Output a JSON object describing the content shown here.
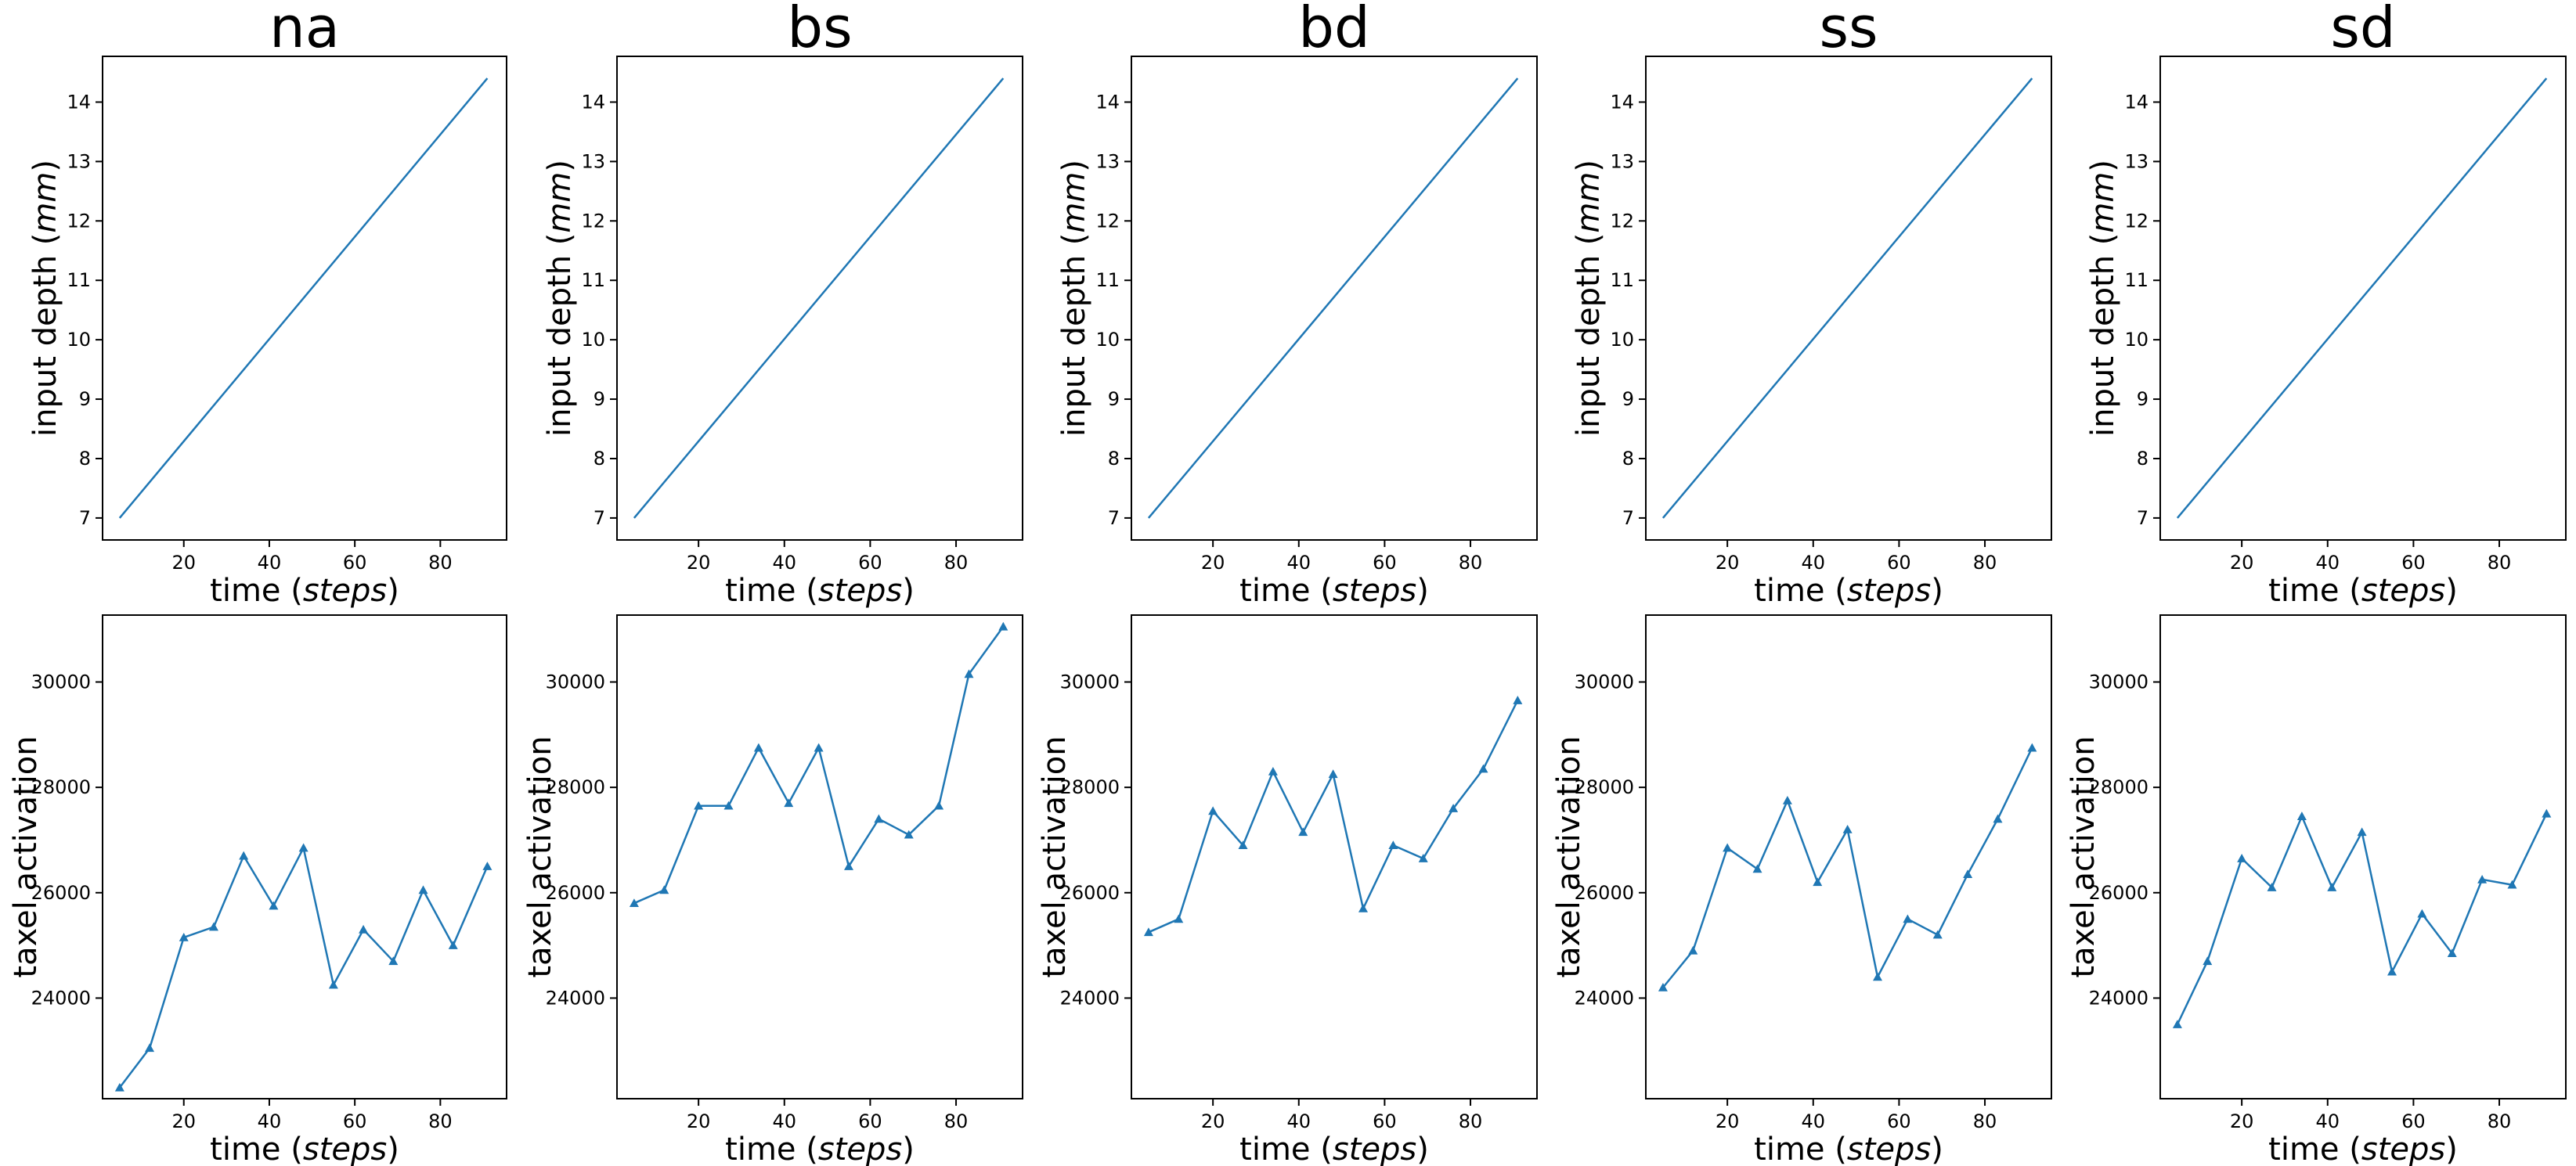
{
  "figure": {
    "panel_titles": [
      "na",
      "bs",
      "bd",
      "ss",
      "sd"
    ],
    "line_color": "#1f77b4",
    "frame_color": "#000000"
  },
  "chart_data": [
    {
      "panel": "na-depth",
      "type": "line",
      "title": "na",
      "xlabel": "time",
      "xlabel_unit": "steps",
      "ylabel": "input depth",
      "ylabel_unit": "mm",
      "x": [
        5,
        91
      ],
      "y": [
        7.0,
        14.4
      ],
      "xlim": [
        1,
        95.5
      ],
      "ylim": [
        6.63,
        14.77
      ],
      "xticks": [
        20,
        40,
        60,
        80
      ],
      "yticks": [
        7,
        8,
        9,
        10,
        11,
        12,
        13,
        14
      ],
      "marker": "none",
      "grid": false
    },
    {
      "panel": "bs-depth",
      "type": "line",
      "title": "bs",
      "xlabel": "time",
      "xlabel_unit": "steps",
      "ylabel": "input depth",
      "ylabel_unit": "mm",
      "x": [
        5,
        91
      ],
      "y": [
        7.0,
        14.4
      ],
      "xlim": [
        1,
        95.5
      ],
      "ylim": [
        6.63,
        14.77
      ],
      "xticks": [
        20,
        40,
        60,
        80
      ],
      "yticks": [
        7,
        8,
        9,
        10,
        11,
        12,
        13,
        14
      ],
      "marker": "none",
      "grid": false
    },
    {
      "panel": "bd-depth",
      "type": "line",
      "title": "bd",
      "xlabel": "time",
      "xlabel_unit": "steps",
      "ylabel": "input depth",
      "ylabel_unit": "mm",
      "x": [
        5,
        91
      ],
      "y": [
        7.0,
        14.4
      ],
      "xlim": [
        1,
        95.5
      ],
      "ylim": [
        6.63,
        14.77
      ],
      "xticks": [
        20,
        40,
        60,
        80
      ],
      "yticks": [
        7,
        8,
        9,
        10,
        11,
        12,
        13,
        14
      ],
      "marker": "none",
      "grid": false
    },
    {
      "panel": "ss-depth",
      "type": "line",
      "title": "ss",
      "xlabel": "time",
      "xlabel_unit": "steps",
      "ylabel": "input depth",
      "ylabel_unit": "mm",
      "x": [
        5,
        91
      ],
      "y": [
        7.0,
        14.4
      ],
      "xlim": [
        1,
        95.5
      ],
      "ylim": [
        6.63,
        14.77
      ],
      "xticks": [
        20,
        40,
        60,
        80
      ],
      "yticks": [
        7,
        8,
        9,
        10,
        11,
        12,
        13,
        14
      ],
      "marker": "none",
      "grid": false
    },
    {
      "panel": "sd-depth",
      "type": "line",
      "title": "sd",
      "xlabel": "time",
      "xlabel_unit": "steps",
      "ylabel": "input depth",
      "ylabel_unit": "mm",
      "x": [
        5,
        91
      ],
      "y": [
        7.0,
        14.4
      ],
      "xlim": [
        1,
        95.5
      ],
      "ylim": [
        6.63,
        14.77
      ],
      "xticks": [
        20,
        40,
        60,
        80
      ],
      "yticks": [
        7,
        8,
        9,
        10,
        11,
        12,
        13,
        14
      ],
      "marker": "none",
      "grid": false
    },
    {
      "panel": "na-activation",
      "type": "line",
      "title": "",
      "xlabel": "time",
      "xlabel_unit": "steps",
      "ylabel": "taxel activation",
      "ylabel_unit": "",
      "x": [
        5,
        12,
        20,
        27,
        34,
        41,
        48,
        55,
        62,
        69,
        76,
        83,
        91
      ],
      "y": [
        22300,
        23050,
        25150,
        25350,
        26700,
        25750,
        26850,
        24250,
        25300,
        24700,
        26050,
        25000,
        26500
      ],
      "xlim": [
        1,
        95.5
      ],
      "ylim": [
        22090,
        31270
      ],
      "xticks": [
        20,
        40,
        60,
        80
      ],
      "yticks": [
        24000,
        26000,
        28000,
        30000
      ],
      "marker": "triangle-up",
      "grid": false
    },
    {
      "panel": "bs-activation",
      "type": "line",
      "title": "",
      "xlabel": "time",
      "xlabel_unit": "steps",
      "ylabel": "taxel activation",
      "ylabel_unit": "",
      "x": [
        5,
        12,
        20,
        27,
        34,
        41,
        48,
        55,
        62,
        69,
        76,
        83,
        91
      ],
      "y": [
        25800,
        26050,
        27650,
        27650,
        28750,
        27700,
        28750,
        26500,
        27400,
        27100,
        27650,
        30150,
        31050
      ],
      "xlim": [
        1,
        95.5
      ],
      "ylim": [
        22090,
        31270
      ],
      "xticks": [
        20,
        40,
        60,
        80
      ],
      "yticks": [
        24000,
        26000,
        28000,
        30000
      ],
      "marker": "triangle-up",
      "grid": false
    },
    {
      "panel": "bd-activation",
      "type": "line",
      "title": "",
      "xlabel": "time",
      "xlabel_unit": "steps",
      "ylabel": "taxel activation",
      "ylabel_unit": "",
      "x": [
        5,
        12,
        20,
        27,
        34,
        41,
        48,
        55,
        62,
        69,
        76,
        83,
        91
      ],
      "y": [
        25250,
        25500,
        27550,
        26900,
        28300,
        27150,
        28250,
        25700,
        26900,
        26650,
        27600,
        28350,
        29650
      ],
      "xlim": [
        1,
        95.5
      ],
      "ylim": [
        22090,
        31270
      ],
      "xticks": [
        20,
        40,
        60,
        80
      ],
      "yticks": [
        24000,
        26000,
        28000,
        30000
      ],
      "marker": "triangle-up",
      "grid": false
    },
    {
      "panel": "ss-activation",
      "type": "line",
      "title": "",
      "xlabel": "time",
      "xlabel_unit": "steps",
      "ylabel": "taxel activation",
      "ylabel_unit": "",
      "x": [
        5,
        12,
        20,
        27,
        34,
        41,
        48,
        55,
        62,
        69,
        76,
        83,
        91
      ],
      "y": [
        24200,
        24900,
        26850,
        26450,
        27750,
        26200,
        27200,
        24400,
        25500,
        25200,
        26350,
        27400,
        28750
      ],
      "xlim": [
        1,
        95.5
      ],
      "ylim": [
        22090,
        31270
      ],
      "xticks": [
        20,
        40,
        60,
        80
      ],
      "yticks": [
        24000,
        26000,
        28000,
        30000
      ],
      "marker": "triangle-up",
      "grid": false
    },
    {
      "panel": "sd-activation",
      "type": "line",
      "title": "",
      "xlabel": "time",
      "xlabel_unit": "steps",
      "ylabel": "taxel activation",
      "ylabel_unit": "",
      "x": [
        5,
        12,
        20,
        27,
        34,
        41,
        48,
        55,
        62,
        69,
        76,
        83,
        91
      ],
      "y": [
        23500,
        24700,
        26650,
        26100,
        27450,
        26100,
        27150,
        24500,
        25600,
        24850,
        26250,
        26150,
        27500
      ],
      "xlim": [
        1,
        95.5
      ],
      "ylim": [
        22090,
        31270
      ],
      "xticks": [
        20,
        40,
        60,
        80
      ],
      "yticks": [
        24000,
        26000,
        28000,
        30000
      ],
      "marker": "triangle-up",
      "grid": false
    }
  ]
}
